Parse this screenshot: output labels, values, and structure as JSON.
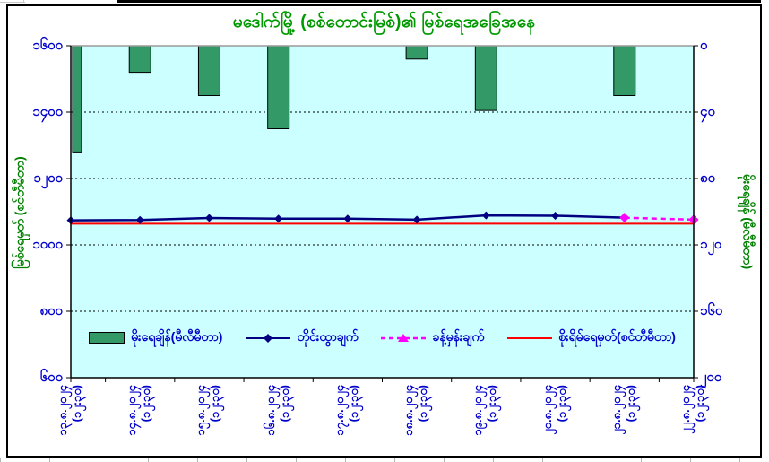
{
  "chart_data": {
    "type": "combo",
    "title": "မဒေါက်မြို့ (စစ်တောင်းမြစ်)၏ မြစ်ရေအခြေအနေ",
    "left_axis": {
      "title": "မြစ်ရေမှတ် (စင်တီမီတာ)",
      "range": [
        600,
        1600
      ],
      "ticks": [
        {
          "value": 1600,
          "label": "၁၆၀၀"
        },
        {
          "value": 1400,
          "label": "၁၄၀၀"
        },
        {
          "value": 1200,
          "label": "၁၂၀၀"
        },
        {
          "value": 1000,
          "label": "၁၀၀၀"
        },
        {
          "value": 800,
          "label": "၈၀၀"
        },
        {
          "value": 600,
          "label": "၆၀၀"
        }
      ]
    },
    "right_axis": {
      "title": "မိုးရေချိန် (မီလီမီတာ)",
      "range": [
        0,
        200
      ],
      "inverted": true,
      "ticks": [
        {
          "value": 0,
          "label": "၀"
        },
        {
          "value": 40,
          "label": "၄၀"
        },
        {
          "value": 80,
          "label": "၈၀"
        },
        {
          "value": 120,
          "label": "၁၂၀"
        },
        {
          "value": 160,
          "label": "၁၆၀"
        },
        {
          "value": 200,
          "label": "၂၀၀"
        }
      ]
    },
    "x_labels": [
      {
        "date": "၁၃.၈.၂၀၂၄",
        "time": "(၁၂:၃၀)"
      },
      {
        "date": "၁၄.၈.၂၀၂၄",
        "time": "(၁၂:၃၀)"
      },
      {
        "date": "၁၅.၈.၂၀၂၄",
        "time": "(၁၂:၃၀)"
      },
      {
        "date": "၁၆.၈.၂၀၂၄",
        "time": "(၁၂:၃၀)"
      },
      {
        "date": "၁၇.၈.၂၀၂၄",
        "time": "(၁၂:၃၀)"
      },
      {
        "date": "၁၈.၈.၂၀၂၄",
        "time": "(၁၂:၃၀)"
      },
      {
        "date": "၁၉.၈.၂၀၂၄",
        "time": "(၁၂:၃၀)"
      },
      {
        "date": "၂၀.၈.၂၀၂၄",
        "time": "(၁၂:၃၀)"
      },
      {
        "date": "၂၁.၈.၂၀၂၄",
        "time": "(၁၂:၃၀)"
      },
      {
        "date": "၂၂.၈.၂၀၂၄",
        "time": "(၁၂:၃၀)"
      }
    ],
    "series": [
      {
        "name": "မိုးရေချိန်(မီလီမီတာ)",
        "type": "bar",
        "axis": "right",
        "color": "#339966",
        "values": [
          64,
          16,
          30,
          50,
          0,
          8,
          39,
          0,
          30,
          0
        ]
      },
      {
        "name": "တိုင်းထွာချက်",
        "type": "line",
        "axis": "left",
        "color": "#000080",
        "marker": "diamond",
        "values": [
          1074,
          1075,
          1081,
          1079,
          1079,
          1076,
          1089,
          1088,
          1082,
          null
        ]
      },
      {
        "name": "ခန့်မှန်းချက်",
        "type": "line-dashed",
        "axis": "left",
        "color": "#FF00FF",
        "marker": "diamond",
        "values": [
          null,
          null,
          null,
          null,
          null,
          null,
          null,
          null,
          1082,
          1076
        ]
      },
      {
        "name": "စိုးရိမ်ရေမှတ်(စင်တီမီတာ)",
        "type": "line",
        "axis": "left",
        "color": "#FF0000",
        "constant": 1064
      }
    ],
    "legend_position": "bottom-inside",
    "grid": "horizontal-dashed",
    "colors": {
      "title_green": "#009900",
      "axis_label_blue": "#0000CC",
      "axis_title_green": "#008000",
      "plot_bg": "#CCFFFF",
      "bar_green": "#339966",
      "measured_navy": "#000080",
      "forecast_magenta": "#FF00FF",
      "danger_red": "#FF0000"
    }
  }
}
